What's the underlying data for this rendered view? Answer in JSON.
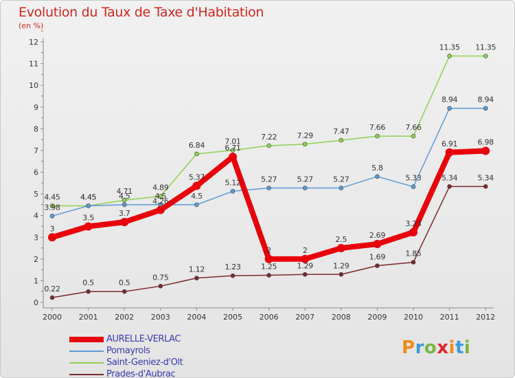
{
  "header": {
    "title": "Evolution du Taux de Taxe d'Habitation",
    "subtitle": "(en %)"
  },
  "logo": {
    "text": "Proxiti",
    "colors": [
      "#f08a1c",
      "#3a9ad9",
      "#7ab648",
      "#e0262f",
      "#f08a1c",
      "#3a9ad9",
      "#7ab648"
    ]
  },
  "chart_data": {
    "type": "line",
    "x": [
      "2000",
      "2001",
      "2002",
      "2003",
      "2004",
      "2005",
      "2006",
      "2007",
      "2008",
      "2009",
      "2010",
      "2011",
      "2012"
    ],
    "ylim": [
      0,
      12
    ],
    "yticks": [
      "0",
      "1",
      "2",
      "3",
      "4",
      "5",
      "6",
      "7",
      "8",
      "9",
      "10",
      "11",
      "12"
    ],
    "grid": false,
    "legend_position": "bottom-left",
    "series": [
      {
        "name": "AURELLE-VERLAC",
        "color": "#e8000b",
        "values": [
          3,
          3.5,
          3.7,
          4.26,
          5.37,
          6.71,
          2,
          2,
          2.5,
          2.69,
          3.23,
          6.91,
          6.98
        ],
        "labels": [
          "3",
          "3.5",
          "3.7",
          "4.26",
          "5.37",
          "6.71",
          "2",
          "2",
          "2.5",
          "2.69",
          "3.23",
          "6.91",
          "6.98"
        ]
      },
      {
        "name": "Pomayrols",
        "color": "#5b9bd5",
        "values": [
          3.98,
          4.45,
          4.5,
          4.5,
          4.5,
          5.12,
          5.27,
          5.27,
          5.27,
          5.8,
          5.33,
          8.94,
          8.94
        ],
        "labels": [
          "3.98",
          "4.45",
          "4.5",
          "4.5",
          "4.5",
          "5.12",
          "5.27",
          "5.27",
          "5.27",
          "5.8",
          "5.33",
          "8.94",
          "8.94"
        ]
      },
      {
        "name": "Saint-Geniez-d'Olt",
        "color": "#8fd14f",
        "values": [
          4.45,
          4.45,
          4.71,
          4.89,
          6.84,
          7.01,
          7.22,
          7.29,
          7.47,
          7.66,
          7.66,
          11.35,
          11.35
        ],
        "labels": [
          "4.45",
          "4.45",
          "4.71",
          "4.89",
          "6.84",
          "7.01",
          "7.22",
          "7.29",
          "7.47",
          "7.66",
          "7.66",
          "11.35",
          "11.35"
        ]
      },
      {
        "name": "Prades-d'Aubrac",
        "color": "#7a2a2a",
        "values": [
          0.22,
          0.5,
          0.5,
          0.75,
          1.12,
          1.23,
          1.25,
          1.29,
          1.29,
          1.69,
          1.85,
          5.34,
          5.34
        ],
        "labels": [
          "0.22",
          "0.5",
          "0.5",
          "0.75",
          "1.12",
          "1.23",
          "1.25",
          "1.29",
          "1.29",
          "1.69",
          "1.85",
          "5.34",
          "5.34"
        ]
      }
    ]
  }
}
